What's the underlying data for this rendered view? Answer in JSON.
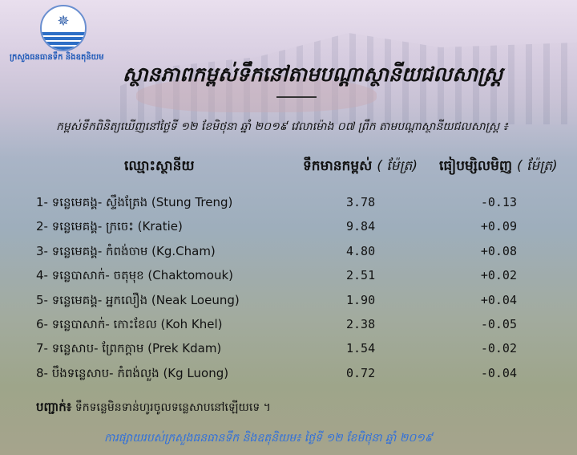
{
  "logo": {
    "text": "ក្រសួងធនធានទឹក និងឧតុនិយម",
    "icon": "compass-star-wave-emblem"
  },
  "title": "ស្ថានភាពកម្ពស់ទឹកនៅតាមបណ្តាស្ថានីយជលសាស្ត្រ",
  "subtitle": "កម្ពស់ទឹកពិនិត្យឃើញនៅថ្ងៃទី ១២ ខែមិថុនា ឆ្នាំ ២០១៩ វេលាម៉ោង ០៧ ព្រឹក តាមបណ្តាស្ថានីយជលសាស្ត្រ ៖",
  "table": {
    "headers": {
      "station": "ឈ្មោះស្ថានីយ",
      "level": "ទឹកមានកម្ពស់",
      "level_unit": "( ម៉ែត្រ)",
      "change": "ធៀបម្សិលមិញ",
      "change_unit": "( ម៉ែត្រ)"
    },
    "rows": [
      {
        "name": "1- ទន្លេមេគង្គ- ស្ទឹងត្រែង (Stung Treng)",
        "level": "3.78",
        "change": "-0.13"
      },
      {
        "name": "2- ទន្លេមេគង្គ- ក្រចេះ (Kratie)",
        "level": "9.84",
        "change": "+0.09"
      },
      {
        "name": "3- ទន្លេមេគង្គ- កំពង់ចាម (Kg.Cham)",
        "level": "4.80",
        "change": "+0.08"
      },
      {
        "name": "4- ទន្លេបាសាក់- ចតុមុខ (Chaktomouk)",
        "level": "2.51",
        "change": "+0.02"
      },
      {
        "name": "5- ទន្លេមេគង្គ- អ្នកលឿង (Neak Loeung)",
        "level": "1.90",
        "change": "+0.04"
      },
      {
        "name": "6- ទន្លេបាសាក់- កោះខែល (Koh Khel)",
        "level": "2.38",
        "change": "-0.05"
      },
      {
        "name": "7- ទន្លេសាប- ព្រែកក្តាម (Prek Kdam)",
        "level": "1.54",
        "change": "-0.02"
      },
      {
        "name": "8- បឹងទន្លេសាប- កំពង់លួង (Kg Luong)",
        "level": "0.72",
        "change": "-0.04"
      }
    ]
  },
  "note": {
    "label": "បញ្ជាក់៖",
    "text": "ទឹកទន្លេមិនទាន់ហូរចូលទន្លេសាបនៅឡើយទេ ។"
  },
  "footer": "ការផ្សាយរបស់ក្រសួងធនធានទឹក និងឧតុនិយម៖ ថ្ងៃទី ១២ ខែមិថុនា ឆ្នាំ ២០១៩",
  "colors": {
    "footer": "#2f6fdc",
    "logo_text": "#1f5ab8"
  }
}
